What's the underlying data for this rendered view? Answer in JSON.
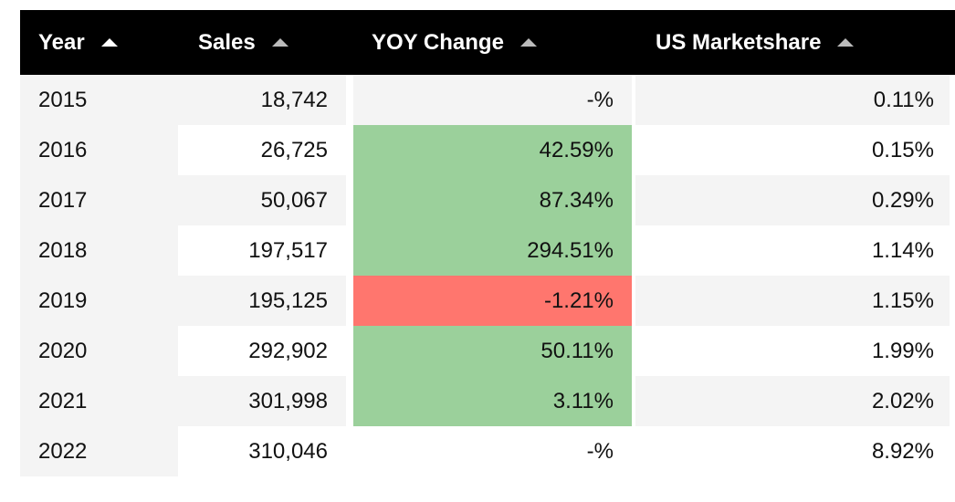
{
  "table": {
    "headers": [
      "Year",
      "Sales",
      "YOY Change",
      "US Marketshare"
    ],
    "rows": [
      {
        "year": "2015",
        "sales": "18,742",
        "yoy": "-%",
        "yoy_status": "none",
        "share": "0.11%"
      },
      {
        "year": "2016",
        "sales": "26,725",
        "yoy": "42.59%",
        "yoy_status": "positive",
        "share": "0.15%"
      },
      {
        "year": "2017",
        "sales": "50,067",
        "yoy": "87.34%",
        "yoy_status": "positive",
        "share": "0.29%"
      },
      {
        "year": "2018",
        "sales": "197,517",
        "yoy": "294.51%",
        "yoy_status": "positive",
        "share": "1.14%"
      },
      {
        "year": "2019",
        "sales": "195,125",
        "yoy": "-1.21%",
        "yoy_status": "negative",
        "share": "1.15%"
      },
      {
        "year": "2020",
        "sales": "292,902",
        "yoy": "50.11%",
        "yoy_status": "positive",
        "share": "1.99%"
      },
      {
        "year": "2021",
        "sales": "301,998",
        "yoy": "3.11%",
        "yoy_status": "positive",
        "share": "2.02%"
      },
      {
        "year": "2022",
        "sales": "310,046",
        "yoy": "-%",
        "yoy_status": "none",
        "share": "8.92%"
      }
    ]
  },
  "colors": {
    "header_bg": "#000000",
    "positive": "#9bd09b",
    "negative": "#ff766e",
    "stripe": "#f4f4f4"
  },
  "icons": {
    "sort": "sort-ascending-icon"
  }
}
